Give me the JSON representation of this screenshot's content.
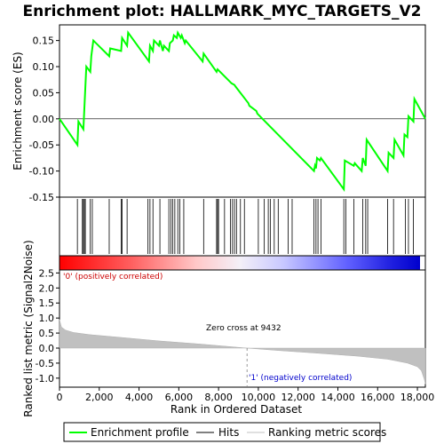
{
  "chart_data": {
    "type": "line",
    "title": "Enrichment plot: HALLMARK_MYC_TARGETS_V2",
    "top_panel": {
      "ylabel": "Enrichment score (ES)",
      "ylim": [
        -0.15,
        0.18
      ],
      "yticks": [
        "0.15",
        "0.10",
        "0.05",
        "0.00",
        "-0.05",
        "-0.10",
        "-0.15"
      ],
      "ytick_values": [
        0.15,
        0.1,
        0.05,
        0.0,
        -0.05,
        -0.1,
        -0.15
      ],
      "series": [
        {
          "name": "Enrichment profile",
          "color": "#00ff00",
          "x": [
            0,
            900,
            950,
            1200,
            1250,
            1300,
            1350,
            1550,
            1600,
            1700,
            2500,
            2550,
            3100,
            3150,
            3400,
            3450,
            4500,
            4550,
            4700,
            4750,
            5000,
            5050,
            5200,
            5250,
            5500,
            5550,
            5700,
            5750,
            5900,
            5950,
            6100,
            6150,
            6300,
            6350,
            7200,
            7250,
            7900,
            7950,
            8600,
            8650,
            8800,
            8850,
            9500,
            9550,
            9900,
            9950,
            12800,
            12850,
            12900,
            12950,
            13100,
            13150,
            14300,
            14350,
            14800,
            14850,
            15200,
            15250,
            15400,
            15450,
            16500,
            16550,
            16800,
            16850,
            17300,
            17350,
            17500,
            17550,
            17800,
            17850,
            18400
          ],
          "y": [
            0.0,
            -0.05,
            -0.005,
            -0.02,
            0.02,
            0.06,
            0.1,
            0.09,
            0.12,
            0.15,
            0.12,
            0.135,
            0.13,
            0.155,
            0.14,
            0.165,
            0.11,
            0.14,
            0.13,
            0.15,
            0.14,
            0.15,
            0.13,
            0.14,
            0.13,
            0.145,
            0.15,
            0.16,
            0.155,
            0.165,
            0.155,
            0.16,
            0.145,
            0.15,
            0.11,
            0.125,
            0.09,
            0.095,
            0.07,
            0.068,
            0.065,
            0.062,
            0.03,
            0.025,
            0.015,
            0.01,
            -0.1,
            -0.09,
            -0.095,
            -0.075,
            -0.08,
            -0.075,
            -0.135,
            -0.08,
            -0.09,
            -0.085,
            -0.1,
            -0.075,
            -0.09,
            -0.04,
            -0.1,
            -0.065,
            -0.075,
            -0.04,
            -0.07,
            -0.03,
            -0.035,
            0.005,
            -0.005,
            0.038,
            0.0
          ]
        }
      ],
      "hits_label": "Hits",
      "hit_positions": [
        900,
        1150,
        1200,
        1250,
        1300,
        1550,
        1650,
        2500,
        3100,
        3150,
        3400,
        4450,
        4550,
        4700,
        5050,
        5500,
        5600,
        5700,
        5800,
        5950,
        6050,
        6250,
        7250,
        7900,
        7950,
        8000,
        8300,
        8600,
        8700,
        8800,
        8900,
        9100,
        9300,
        10000,
        10300,
        10500,
        10600,
        10800,
        11000,
        11500,
        11700,
        12800,
        12900,
        13000,
        13150,
        14300,
        14400,
        14800,
        15250,
        15400,
        15500,
        16500,
        16800,
        17400,
        17550,
        17800
      ]
    },
    "bottom_panel": {
      "ylabel": "Ranked list metric (Signal2Noise)",
      "ylim": [
        -1.3,
        2.6
      ],
      "yticks": [
        "2.5",
        "2.0",
        "1.5",
        "1.0",
        "0.5",
        "0.0",
        "-0.5",
        "-1.0"
      ],
      "ytick_values": [
        2.5,
        2.0,
        1.5,
        1.0,
        0.5,
        0.0,
        -0.5,
        -1.0
      ],
      "series": [
        {
          "name": "Ranking metric scores",
          "color": "#c0c0c0",
          "x": [
            0,
            100,
            300,
            700,
            1500,
            3000,
            5000,
            7000,
            9432,
            11000,
            13000,
            15000,
            16500,
            17500,
            18000,
            18200,
            18350,
            18400
          ],
          "y": [
            0.95,
            0.7,
            0.6,
            0.52,
            0.45,
            0.36,
            0.24,
            0.14,
            0.0,
            -0.08,
            -0.17,
            -0.27,
            -0.37,
            -0.5,
            -0.62,
            -0.75,
            -1.05,
            -1.2
          ]
        }
      ],
      "zero_cross_label": "Zero cross at 9432",
      "zero_cross": 9432,
      "pos_label": "'0' (positively correlated)",
      "neg_label": "'1' (negatively correlated)"
    },
    "xlabel": "Rank in Ordered Dataset",
    "xlim": [
      0,
      18400
    ],
    "xticks": [
      "0",
      "2,000",
      "4,000",
      "6,000",
      "8,000",
      "10,000",
      "12,000",
      "14,000",
      "16,000",
      "18,000"
    ],
    "xtick_values": [
      0,
      2000,
      4000,
      6000,
      8000,
      10000,
      12000,
      14000,
      16000,
      18000
    ],
    "legend": {
      "placement": "bottom",
      "entries": [
        "Enrichment profile",
        "Hits",
        "Ranking metric scores"
      ]
    },
    "colors": {
      "profile": "#00ff00",
      "hits": "#000000",
      "metric": "#c0c0c0",
      "pos_end": "#ff0000",
      "neg_end": "#0000ff"
    }
  }
}
